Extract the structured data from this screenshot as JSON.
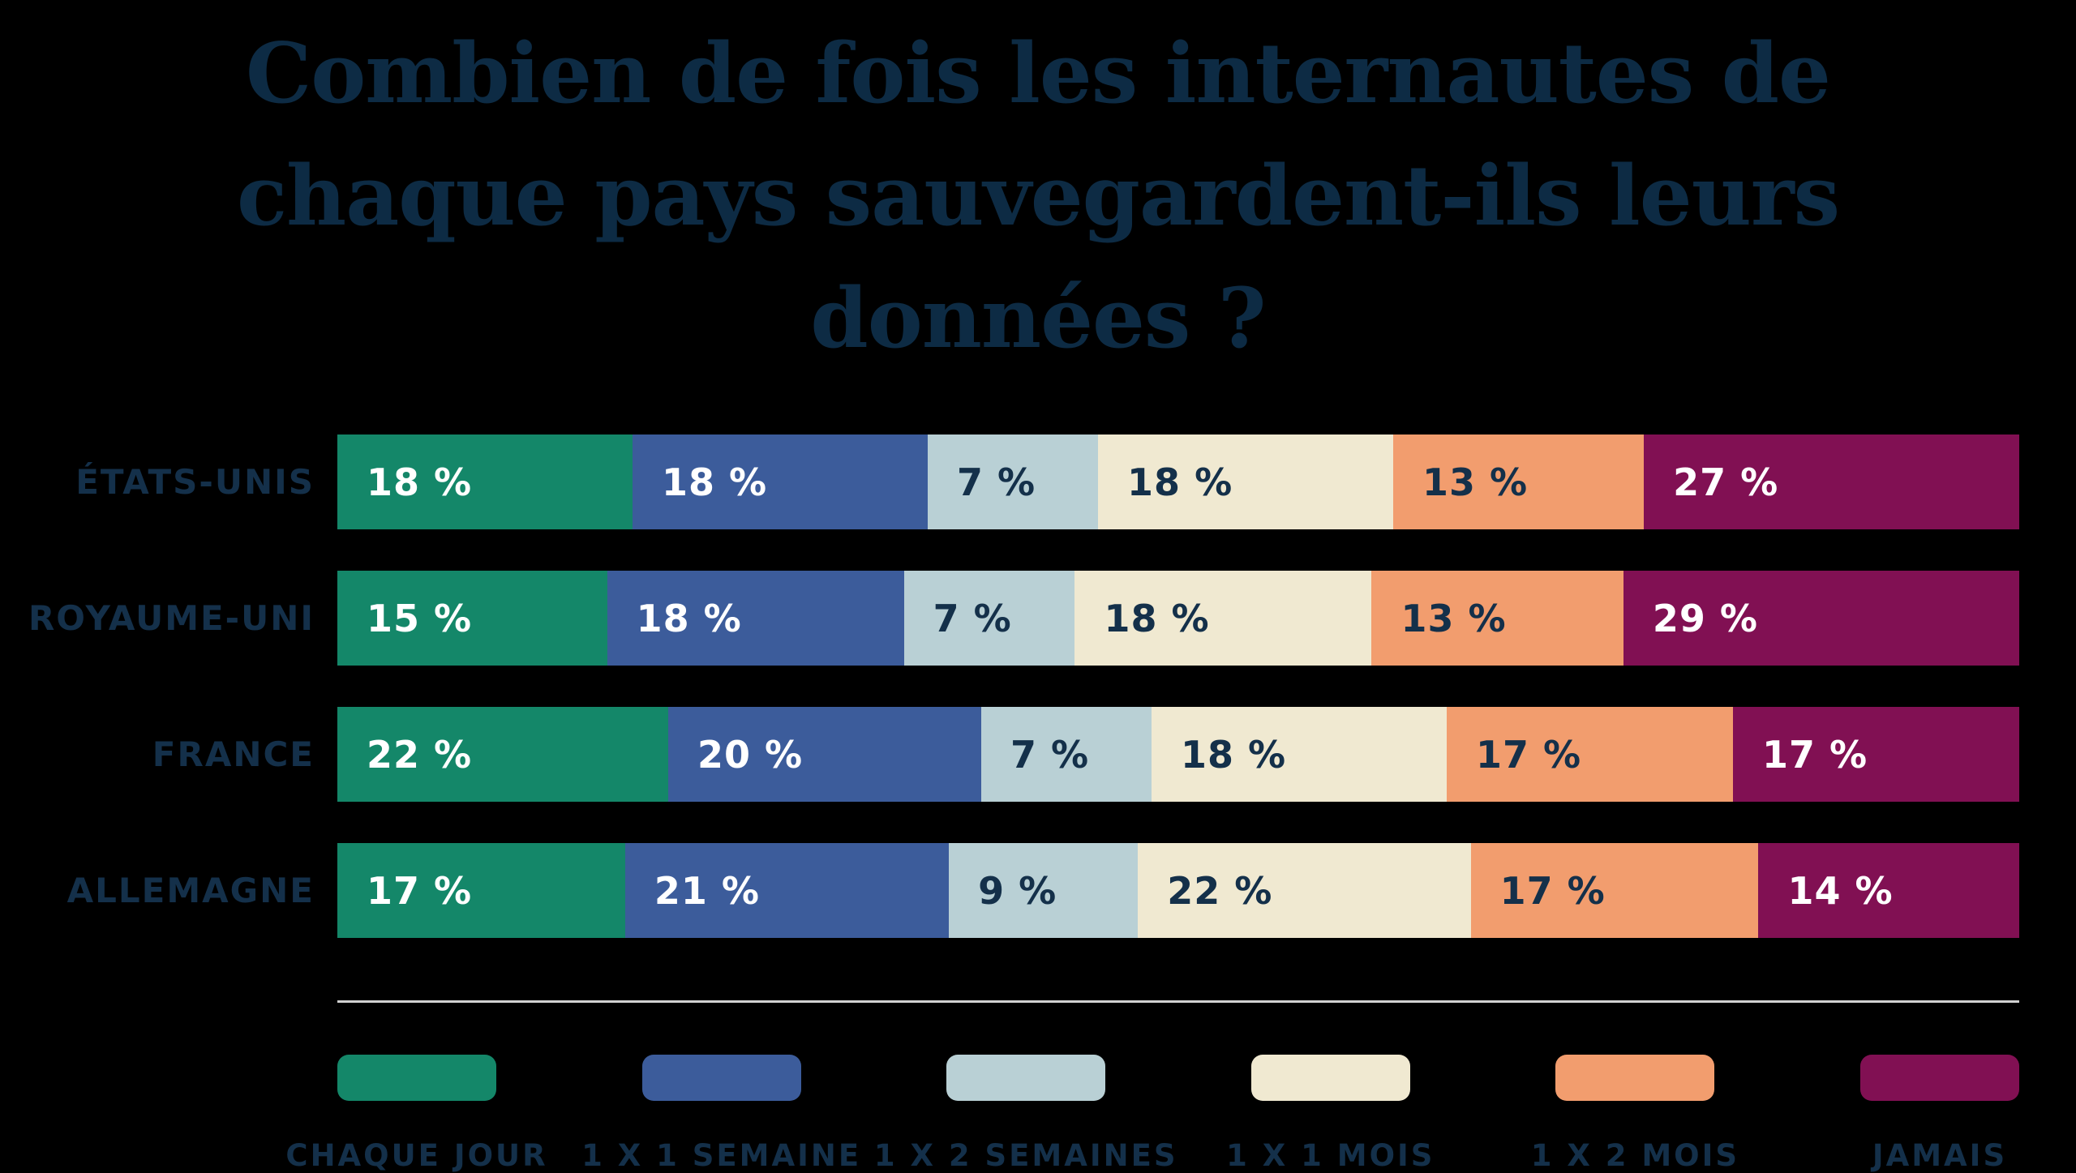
{
  "page": {
    "background_color": "#000000",
    "title_color": "#0d2b44",
    "label_color": "#14304a",
    "divider_color": "#d1d1d1"
  },
  "title": "Combien de fois les internautes de chaque pays sauvegardent-ils leurs données ?",
  "chart_data": {
    "type": "bar",
    "variant": "horizontal-stacked",
    "title": "Combien de fois les internautes de chaque pays sauvegardent-ils leurs données ?",
    "categories": [
      "ÉTATS-UNIS",
      "ROYAUME-UNI",
      "FRANCE",
      "ALLEMAGNE"
    ],
    "series": [
      {
        "name": "CHAQUE JOUR",
        "color": "#148769",
        "text_color": "#ffffff",
        "values": [
          18,
          15,
          22,
          17
        ]
      },
      {
        "name": "1 X 1 SEMAINE",
        "color": "#3c5c9b",
        "text_color": "#ffffff",
        "values": [
          18,
          18,
          20,
          21
        ]
      },
      {
        "name": "1 X 2 SEMAINES",
        "color": "#b9d0d5",
        "text_color": "#14304a",
        "values": [
          7,
          7,
          7,
          9
        ]
      },
      {
        "name": "1 X 1 MOIS",
        "color": "#f0e9d1",
        "text_color": "#14304a",
        "values": [
          18,
          18,
          18,
          22
        ]
      },
      {
        "name": "1 X 2 MOIS",
        "color": "#f29d6e",
        "text_color": "#14304a",
        "values": [
          13,
          13,
          17,
          17
        ]
      },
      {
        "name": "JAMAIS",
        "color": "#811053",
        "text_color": "#ffffff",
        "values": [
          27,
          29,
          17,
          14
        ]
      }
    ],
    "value_suffix": " %",
    "value_labels": [
      [
        "18 %",
        "18 %",
        "7 %",
        "18 %",
        "13 %",
        "27 %"
      ],
      [
        "15 %",
        "18 %",
        "7 %",
        "18 %",
        "13 %",
        "29 %"
      ],
      [
        "22 %",
        "20 %",
        "7 %",
        "18 %",
        "17 %",
        "17 %"
      ],
      [
        "17 %",
        "21 %",
        "9 %",
        "22 %",
        "17 %",
        "14 %"
      ]
    ],
    "legend_position": "bottom",
    "grid": false,
    "axis": "none"
  }
}
